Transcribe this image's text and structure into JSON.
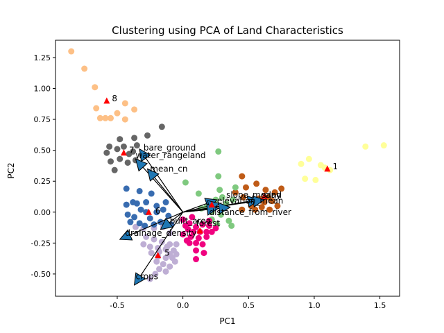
{
  "chart_data": {
    "type": "scatter",
    "title": "Clustering using PCA of Land Characteristics",
    "xlabel": "PC1",
    "ylabel": "PC2",
    "xlim": [
      -0.97,
      1.65
    ],
    "ylim": [
      -0.68,
      1.39
    ],
    "xticks": [
      -0.5,
      0.0,
      0.5,
      1.0,
      1.5
    ],
    "yticks": [
      -0.5,
      -0.25,
      0.0,
      0.25,
      0.5,
      0.75,
      1.0,
      1.25
    ],
    "grid": false,
    "clusters": [
      {
        "id": "1",
        "color": "#ffff99",
        "centroid": [
          1.1,
          0.35
        ],
        "points": [
          [
            1.39,
            0.53
          ],
          [
            1.53,
            0.54
          ],
          [
            1.12,
            0.34
          ],
          [
            1.05,
            0.38
          ],
          [
            0.9,
            0.39
          ],
          [
            0.96,
            0.43
          ],
          [
            1.01,
            0.26
          ],
          [
            1.08,
            0.36
          ],
          [
            0.93,
            0.27
          ]
        ]
      },
      {
        "id": "2",
        "color": "#bf5b17",
        "centroid": [
          0.62,
          0.13
        ],
        "points": [
          [
            0.45,
            0.29
          ],
          [
            0.56,
            0.23
          ],
          [
            0.63,
            0.18
          ],
          [
            0.75,
            0.19
          ],
          [
            0.7,
            0.16
          ],
          [
            0.58,
            0.11
          ],
          [
            0.46,
            0.12
          ],
          [
            0.52,
            0.05
          ],
          [
            0.62,
            0.08
          ],
          [
            0.6,
            0.04
          ],
          [
            0.66,
            0.02
          ],
          [
            0.45,
            0.02
          ],
          [
            0.55,
            0.02
          ],
          [
            0.68,
            0.09
          ],
          [
            0.72,
            0.05
          ],
          [
            0.4,
            0.16
          ],
          [
            0.48,
            0.2
          ],
          [
            0.65,
            0.12
          ]
        ]
      },
      {
        "id": "3",
        "color": "#7fc97f",
        "centroid": [
          0.22,
          0.06
        ],
        "points": [
          [
            0.27,
            0.49
          ],
          [
            0.27,
            0.29
          ],
          [
            0.02,
            0.24
          ],
          [
            0.33,
            0.07
          ],
          [
            0.38,
            0.1
          ],
          [
            0.3,
            0.12
          ],
          [
            0.28,
            0.18
          ],
          [
            0.25,
            0.1
          ],
          [
            0.18,
            0.04
          ],
          [
            0.14,
            0.03
          ],
          [
            0.22,
            0.0
          ],
          [
            0.29,
            -0.02
          ],
          [
            0.35,
            -0.07
          ],
          [
            0.37,
            -0.11
          ],
          [
            0.26,
            -0.1
          ],
          [
            0.22,
            -0.06
          ],
          [
            0.12,
            0.15
          ],
          [
            0.4,
            0.2
          ]
        ]
      },
      {
        "id": "4",
        "color": "#f0027f",
        "centroid": [
          0.13,
          -0.15
        ],
        "points": [
          [
            0.0,
            -0.06
          ],
          [
            0.05,
            -0.09
          ],
          [
            0.1,
            -0.12
          ],
          [
            0.15,
            -0.1
          ],
          [
            0.2,
            -0.11
          ],
          [
            0.25,
            -0.13
          ],
          [
            0.08,
            -0.16
          ],
          [
            0.13,
            -0.16
          ],
          [
            0.18,
            -0.16
          ],
          [
            0.04,
            -0.14
          ],
          [
            0.0,
            -0.18
          ],
          [
            0.06,
            -0.2
          ],
          [
            0.12,
            -0.21
          ],
          [
            0.18,
            -0.2
          ],
          [
            0.05,
            -0.25
          ],
          [
            0.1,
            -0.25
          ],
          [
            0.02,
            -0.11
          ],
          [
            0.22,
            -0.16
          ],
          [
            0.07,
            -0.04
          ],
          [
            0.15,
            -0.26
          ],
          [
            0.1,
            -0.31
          ],
          [
            0.16,
            -0.33
          ],
          [
            0.1,
            -0.38
          ],
          [
            0.03,
            -0.23
          ],
          [
            0.2,
            -0.07
          ]
        ]
      },
      {
        "id": "5",
        "color": "#beaed4",
        "centroid": [
          -0.19,
          -0.35
        ],
        "points": [
          [
            -0.36,
            -0.12
          ],
          [
            -0.3,
            -0.13
          ],
          [
            -0.22,
            -0.13
          ],
          [
            -0.15,
            -0.12
          ],
          [
            -0.1,
            -0.17
          ],
          [
            -0.28,
            -0.2
          ],
          [
            -0.22,
            -0.22
          ],
          [
            -0.16,
            -0.24
          ],
          [
            -0.1,
            -0.26
          ],
          [
            -0.3,
            -0.26
          ],
          [
            -0.25,
            -0.28
          ],
          [
            -0.19,
            -0.29
          ],
          [
            -0.13,
            -0.3
          ],
          [
            -0.07,
            -0.31
          ],
          [
            -0.24,
            -0.33
          ],
          [
            -0.19,
            -0.36
          ],
          [
            -0.13,
            -0.37
          ],
          [
            -0.08,
            -0.37
          ],
          [
            -0.2,
            -0.4
          ],
          [
            -0.15,
            -0.42
          ],
          [
            -0.1,
            -0.44
          ],
          [
            -0.18,
            -0.46
          ],
          [
            -0.13,
            -0.48
          ],
          [
            -0.21,
            -0.5
          ],
          [
            -0.25,
            -0.54
          ],
          [
            -0.1,
            -0.34
          ],
          [
            -0.05,
            -0.26
          ],
          [
            -0.18,
            -0.32
          ],
          [
            -0.12,
            -0.28
          ],
          [
            -0.06,
            -0.4
          ],
          [
            -0.05,
            -0.34
          ]
        ]
      },
      {
        "id": "6",
        "color": "#386cb0",
        "centroid": [
          -0.26,
          0.0
        ],
        "points": [
          [
            -0.43,
            0.19
          ],
          [
            -0.33,
            0.17
          ],
          [
            -0.28,
            0.08
          ],
          [
            -0.2,
            0.05
          ],
          [
            -0.35,
            0.07
          ],
          [
            -0.43,
            0.06
          ],
          [
            -0.38,
            0.08
          ],
          [
            -0.32,
            0.02
          ],
          [
            -0.2,
            0.0
          ],
          [
            -0.42,
            -0.02
          ],
          [
            -0.37,
            -0.04
          ],
          [
            -0.25,
            -0.05
          ],
          [
            -0.4,
            -0.08
          ],
          [
            -0.33,
            -0.09
          ],
          [
            -0.22,
            -0.1
          ],
          [
            -0.29,
            -0.11
          ],
          [
            -0.17,
            -0.08
          ],
          [
            -0.11,
            -0.03
          ],
          [
            -0.13,
            0.08
          ],
          [
            -0.24,
            0.15
          ],
          [
            -0.09,
            -0.1
          ],
          [
            -0.15,
            0.02
          ],
          [
            -0.28,
            0.0
          ]
        ]
      },
      {
        "id": "7",
        "color": "#666666",
        "centroid": [
          -0.45,
          0.48
        ],
        "points": [
          [
            -0.56,
            0.53
          ],
          [
            -0.45,
            0.53
          ],
          [
            -0.38,
            0.49
          ],
          [
            -0.48,
            0.59
          ],
          [
            -0.37,
            0.6
          ],
          [
            -0.27,
            0.62
          ],
          [
            -0.16,
            0.69
          ],
          [
            -0.58,
            0.48
          ],
          [
            -0.55,
            0.41
          ],
          [
            -0.42,
            0.4
          ],
          [
            -0.52,
            0.34
          ],
          [
            -0.48,
            0.43
          ],
          [
            -0.35,
            0.54
          ],
          [
            -0.41,
            0.47
          ],
          [
            -0.36,
            0.42
          ],
          [
            -0.5,
            0.51
          ]
        ]
      },
      {
        "id": "8",
        "color": "#fdc086",
        "centroid": [
          -0.58,
          0.9
        ],
        "points": [
          [
            -0.85,
            1.3
          ],
          [
            -0.75,
            1.16
          ],
          [
            -0.67,
            1.01
          ],
          [
            -0.66,
            0.84
          ],
          [
            -0.59,
            0.76
          ],
          [
            -0.55,
            0.76
          ],
          [
            -0.44,
            0.88
          ],
          [
            -0.44,
            0.75
          ],
          [
            -0.37,
            0.83
          ],
          [
            -0.63,
            0.76
          ],
          [
            -0.5,
            0.8
          ]
        ]
      }
    ],
    "loadings": [
      {
        "name": "bare_ground",
        "x": -0.33,
        "y": 0.51
      },
      {
        "name": "water_rangeland",
        "x": -0.36,
        "y": 0.43
      },
      {
        "name": "mean_cn",
        "x": -0.27,
        "y": 0.35
      },
      {
        "name": "drainage_density",
        "x": -0.48,
        "y": -0.22
      },
      {
        "name": "built_area",
        "x": -0.17,
        "y": -0.14
      },
      {
        "name": "crops",
        "x": -0.37,
        "y": -0.59
      },
      {
        "name": "slope_mean",
        "x": 0.26,
        "y": 0.1
      },
      {
        "name": "elevation_mean",
        "x": 0.28,
        "y": 0.07
      },
      {
        "name": "sand",
        "x": 0.58,
        "y": 0.1
      },
      {
        "name": "clay",
        "x": 0.62,
        "y": 0.1
      },
      {
        "name": "distance_from_river",
        "x": 0.36,
        "y": 0.04
      },
      {
        "name": "forest",
        "x": 0.27,
        "y": 0.03
      }
    ],
    "annotations": [
      {
        "text": "bare_ground",
        "x": -0.3,
        "y": 0.52
      },
      {
        "text": "water_rangeland",
        "x": -0.36,
        "y": 0.46
      },
      {
        "text": "mean_cn",
        "x": -0.25,
        "y": 0.35
      },
      {
        "text": "drainage_density",
        "x": -0.44,
        "y": -0.17
      },
      {
        "text": "built_area",
        "x": -0.1,
        "y": -0.07
      },
      {
        "text": "crops",
        "x": -0.36,
        "y": -0.52
      },
      {
        "text": "slope_mean",
        "x": 0.33,
        "y": 0.14
      },
      {
        "text": "elevation_mean",
        "x": 0.26,
        "y": 0.09
      },
      {
        "text": "sand",
        "x": 0.6,
        "y": 0.14
      },
      {
        "text": "clay",
        "x": 0.62,
        "y": 0.14
      },
      {
        "text": "distance_from_river",
        "x": 0.2,
        "y": 0.0
      },
      {
        "text": "forest",
        "x": 0.1,
        "y": -0.09
      },
      {
        "text": "1",
        "x": 1.14,
        "y": 0.37
      },
      {
        "text": "5",
        "x": -0.14,
        "y": -0.33
      },
      {
        "text": "6",
        "x": -0.21,
        "y": 0.01
      },
      {
        "text": "7",
        "x": -0.41,
        "y": 0.5
      },
      {
        "text": "8",
        "x": -0.54,
        "y": 0.92
      }
    ]
  }
}
